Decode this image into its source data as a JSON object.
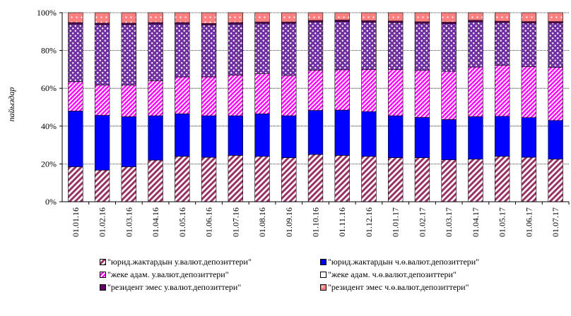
{
  "chart_data": {
    "type": "bar",
    "stacked": "percent",
    "ylabel": "пайыздар",
    "ylim": [
      0,
      100
    ],
    "yticks": [
      "0%",
      "20%",
      "40%",
      "60%",
      "80%",
      "100%"
    ],
    "grid": true,
    "legend_position": "bottom",
    "categories": [
      "01.01.16",
      "01.02.16",
      "01.03.16",
      "01.04.16",
      "01.05.16",
      "01.06.16",
      "01.07.16",
      "01.08.16",
      "01.09.16",
      "01.10.16",
      "01.11.16",
      "01.12.16",
      "01.01.17",
      "01.02.17",
      "01.03.17",
      "01.04.17",
      "01.05.17",
      "01.06.17",
      "01.07.17"
    ],
    "series": [
      {
        "name": "\"юрид.жактардын у.валют.депозиттери\"",
        "pattern": "diagonal",
        "color": "#993366",
        "values": [
          18.5,
          16.7,
          18.5,
          22,
          24,
          23.5,
          24.5,
          24,
          23.3,
          25,
          24.5,
          24,
          23.3,
          23.3,
          22.2,
          22.5,
          24,
          23.5,
          22.5
        ]
      },
      {
        "name": "\"юрид.жактардын ч.ө.валют.депозиттери\"",
        "pattern": "solid",
        "color": "#0000ff",
        "values": [
          29.5,
          29,
          26.5,
          23.5,
          22.5,
          22,
          21,
          22.5,
          22.2,
          23.3,
          24,
          23.7,
          22.2,
          21.3,
          21.3,
          22.5,
          21.2,
          21,
          20.5
        ]
      },
      {
        "name": "\"жеке адам. у.валют.депозиттери\"",
        "pattern": "checker",
        "color": "#ff00ff",
        "values": [
          15.5,
          16,
          16.7,
          18.5,
          19.5,
          20.5,
          21.5,
          21.3,
          21.3,
          21.3,
          21.3,
          22.3,
          24.5,
          25,
          25.5,
          26.2,
          27,
          27,
          28
        ]
      },
      {
        "name": "\"жеке адам. ч.ө.валют.депозиттери\"",
        "pattern": "dotted",
        "color": "#7030a0",
        "values": [
          30.5,
          32,
          32,
          30,
          28,
          27.5,
          27,
          26.5,
          27.5,
          25.5,
          25.5,
          25,
          24.8,
          24.8,
          25.2,
          24,
          22.5,
          23,
          23.5
        ]
      },
      {
        "name": "\"резидент эмес у.валют.депозиттери\"",
        "pattern": "solid",
        "color": "#660066",
        "values": [
          0.8,
          0.8,
          0.8,
          0.8,
          0.8,
          0.8,
          0.8,
          0.8,
          0.8,
          0.8,
          0.8,
          0.8,
          0.8,
          0.8,
          0.8,
          0.8,
          0.8,
          0.8,
          0.8
        ]
      },
      {
        "name": "\"резидент эмес ч.ө.валют.депозиттери\"",
        "pattern": "dotted",
        "color": "#ff8080",
        "values": [
          5.2,
          5.5,
          5.5,
          5.2,
          5.2,
          5.7,
          5.2,
          4.9,
          4.9,
          4.1,
          3.9,
          4.2,
          4.4,
          4.8,
          5,
          4,
          4.5,
          4.7,
          4.7
        ]
      }
    ]
  }
}
